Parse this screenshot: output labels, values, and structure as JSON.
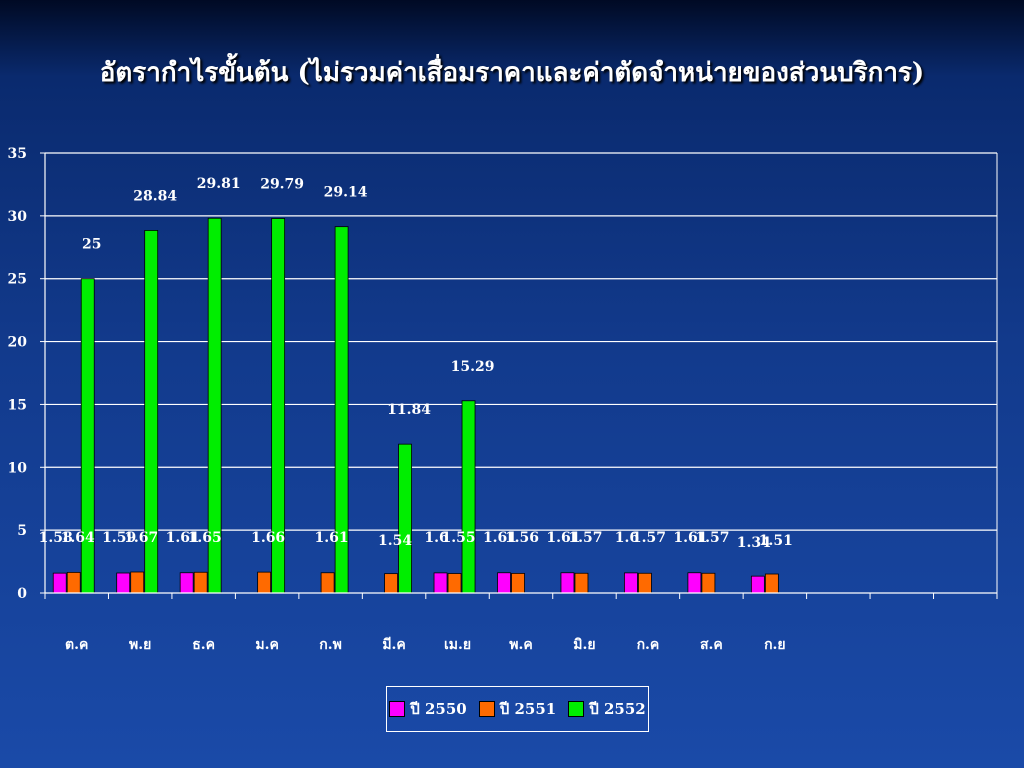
{
  "slide": {
    "title": "อัตรากำไรขั้นต้น (ไม่รวมค่าเสื่อมราคาและค่าตัดจำหน่ายของส่วนบริการ)"
  },
  "colors": {
    "series_2550": "#ff00ff",
    "series_2551": "#ff6a00",
    "series_2552": "#00ee00",
    "grid": "#ffffff"
  },
  "chart_data": {
    "type": "bar",
    "title": "อัตรากำไรขั้นต้น (ไม่รวมค่าเสื่อมราคาและค่าตัดจำหน่ายของส่วนบริการ)",
    "categories": [
      "ต.ค",
      "พ.ย",
      "ธ.ค",
      "ม.ค",
      "ก.พ",
      "มี.ค",
      "เม.ย",
      "พ.ค",
      "มิ.ย",
      "ก.ค",
      "ส.ค",
      "ก.ย",
      "",
      "",
      ""
    ],
    "series": [
      {
        "name": "ปี 2550",
        "values": [
          1.58,
          1.59,
          1.61,
          null,
          null,
          null,
          1.6,
          1.61,
          1.61,
          1.6,
          1.61,
          1.34,
          null,
          null,
          null
        ]
      },
      {
        "name": "ปี 2551",
        "values": [
          1.64,
          1.67,
          1.65,
          1.66,
          1.61,
          1.54,
          1.55,
          1.56,
          1.57,
          1.57,
          1.57,
          1.51,
          null,
          null,
          null
        ]
      },
      {
        "name": "ปี 2552",
        "values": [
          25,
          28.84,
          29.81,
          29.79,
          29.14,
          11.84,
          15.29,
          null,
          null,
          null,
          null,
          null,
          null,
          null,
          null
        ]
      }
    ],
    "ylim": [
      0,
      35
    ],
    "yticks": [
      0,
      5,
      10,
      15,
      20,
      25,
      30,
      35
    ],
    "grid": true,
    "legend_position": "bottom"
  }
}
